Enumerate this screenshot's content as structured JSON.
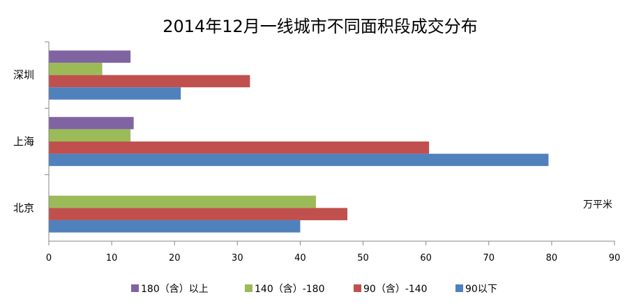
{
  "chart_data": {
    "type": "bar",
    "orientation": "horizontal",
    "title": "2014年12月一线城市不同面积段成交分布",
    "unit_label": "万平米",
    "categories": [
      "深圳",
      "上海",
      "北京"
    ],
    "series": [
      {
        "name": "180（含）以上",
        "color": "#8064A2",
        "values": [
          13,
          13.5,
          0
        ]
      },
      {
        "name": "140（含）-180",
        "color": "#9BBB59",
        "values": [
          8.5,
          13,
          42.5
        ]
      },
      {
        "name": "90（含）-140",
        "color": "#C0504D",
        "values": [
          32,
          60.5,
          47.5
        ]
      },
      {
        "name": "90以下",
        "color": "#4F81BD",
        "values": [
          21,
          79.5,
          40
        ]
      }
    ],
    "xlim": [
      0,
      90
    ],
    "xticks": [
      "0",
      "10",
      "20",
      "30",
      "40",
      "50",
      "60",
      "70",
      "80",
      "90"
    ],
    "grid": false,
    "legend_position": "bottom"
  }
}
